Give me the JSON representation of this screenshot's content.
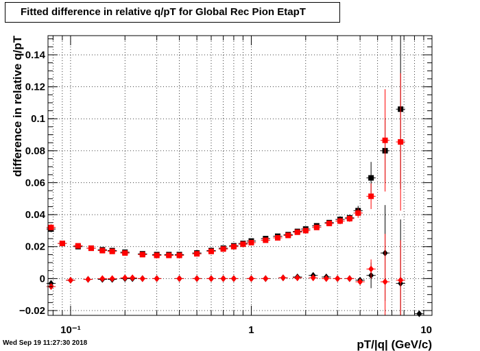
{
  "chart_data": {
    "type": "scatter",
    "title": "Fitted difference in relative q/pT for Global Rec Pion EtapT",
    "xlabel": "pT/|q| (GeV/c)",
    "ylabel": "difference in relative q/pT",
    "x_scale": "log",
    "xlim": [
      0.075,
      10
    ],
    "ylim": [
      -0.023,
      0.152
    ],
    "grid": true,
    "x_ticks": [
      {
        "value": 0.1,
        "label": "10⁻¹"
      },
      {
        "value": 1,
        "label": "1"
      },
      {
        "value": 10,
        "label": "10"
      }
    ],
    "y_ticks": [
      -0.02,
      0,
      0.02,
      0.04,
      0.06,
      0.08,
      0.1,
      0.12,
      0.14
    ],
    "y_tick_labels": [
      "−0.02",
      "0",
      "0.02",
      "0.04",
      "0.06",
      "0.08",
      "0.1",
      "0.12",
      "0.14"
    ],
    "series": [
      {
        "marker": "square",
        "color": "#000000",
        "x": [
          0.078,
          0.09,
          0.11,
          0.13,
          0.15,
          0.17,
          0.2,
          0.25,
          0.3,
          0.35,
          0.4,
          0.5,
          0.6,
          0.7,
          0.8,
          0.9,
          1.0,
          1.2,
          1.4,
          1.6,
          1.8,
          2.0,
          2.3,
          2.7,
          3.1,
          3.5,
          3.9,
          4.6,
          5.5,
          6.7
        ],
        "y": [
          0.031,
          0.022,
          0.02,
          0.019,
          0.018,
          0.0175,
          0.0165,
          0.0155,
          0.015,
          0.015,
          0.015,
          0.016,
          0.0175,
          0.019,
          0.0205,
          0.022,
          0.0235,
          0.025,
          0.0265,
          0.0275,
          0.0295,
          0.031,
          0.033,
          0.035,
          0.037,
          0.038,
          0.0425,
          0.063,
          0.08,
          0.106
        ],
        "yerr": [
          0.002,
          0.001,
          0.001,
          0.001,
          0.001,
          0.001,
          0.0008,
          0.0008,
          0.0008,
          0.0008,
          0.0008,
          0.0008,
          0.0008,
          0.0008,
          0.0008,
          0.0008,
          0.0008,
          0.001,
          0.001,
          0.001,
          0.0012,
          0.0012,
          0.0015,
          0.0015,
          0.002,
          0.002,
          0.003,
          0.01,
          0.02,
          0.05
        ]
      },
      {
        "marker": "square",
        "color": "#ff0000",
        "x": [
          0.078,
          0.09,
          0.11,
          0.13,
          0.15,
          0.17,
          0.2,
          0.25,
          0.3,
          0.35,
          0.4,
          0.5,
          0.6,
          0.7,
          0.8,
          0.9,
          1.0,
          1.2,
          1.4,
          1.6,
          1.8,
          2.0,
          2.3,
          2.7,
          3.1,
          3.5,
          3.9,
          4.6,
          5.5,
          6.7
        ],
        "y": [
          0.032,
          0.022,
          0.0205,
          0.019,
          0.0175,
          0.017,
          0.016,
          0.015,
          0.0145,
          0.0145,
          0.0145,
          0.0155,
          0.017,
          0.0185,
          0.02,
          0.0215,
          0.0225,
          0.024,
          0.0255,
          0.027,
          0.029,
          0.03,
          0.032,
          0.0345,
          0.036,
          0.0375,
          0.041,
          0.0515,
          0.0865,
          0.0855
        ],
        "yerr": [
          0.002,
          0.001,
          0.001,
          0.001,
          0.001,
          0.001,
          0.0008,
          0.0008,
          0.0008,
          0.0008,
          0.0008,
          0.0008,
          0.0008,
          0.0008,
          0.0008,
          0.0008,
          0.0008,
          0.001,
          0.001,
          0.001,
          0.0012,
          0.0012,
          0.0015,
          0.0015,
          0.002,
          0.002,
          0.003,
          0.008,
          0.032,
          0.043
        ]
      },
      {
        "marker": "diamond",
        "color": "#000000",
        "x": [
          0.078,
          0.1,
          0.125,
          0.15,
          0.17,
          0.2,
          0.22,
          0.25,
          0.3,
          0.4,
          0.5,
          0.6,
          0.7,
          0.8,
          1.0,
          1.2,
          1.5,
          1.8,
          2.2,
          2.6,
          3.0,
          3.5,
          4.0,
          4.6,
          5.5,
          6.7,
          8.5
        ],
        "y": [
          -0.003,
          -0.001,
          -0.0005,
          -0.0005,
          -0.0005,
          0.0,
          0.0,
          0.0,
          0.0,
          0.0,
          0.0,
          0.0,
          0.0,
          0.0,
          0.0,
          0.0,
          0.0005,
          0.001,
          0.002,
          0.001,
          0.0,
          0.0,
          -0.001,
          0.002,
          0.016,
          -0.003,
          -0.022
        ],
        "yerr": [
          0.0015,
          0.0008,
          0.0008,
          0.0008,
          0.0008,
          0.0006,
          0.0006,
          0.0006,
          0.0006,
          0.0006,
          0.0006,
          0.0006,
          0.0006,
          0.0006,
          0.0006,
          0.0006,
          0.0006,
          0.0008,
          0.0008,
          0.001,
          0.001,
          0.0012,
          0.0015,
          0.008,
          0.03,
          0.04,
          0.0
        ]
      },
      {
        "marker": "diamond",
        "color": "#ff0000",
        "x": [
          0.078,
          0.1,
          0.125,
          0.15,
          0.17,
          0.2,
          0.22,
          0.25,
          0.3,
          0.4,
          0.5,
          0.6,
          0.7,
          0.8,
          1.0,
          1.2,
          1.5,
          1.8,
          2.2,
          2.6,
          3.0,
          3.5,
          4.0,
          4.6,
          5.5,
          6.7
        ],
        "y": [
          -0.005,
          -0.001,
          -0.0005,
          0.0,
          0.0,
          0.0005,
          0.0005,
          0.0,
          0.0,
          0.0,
          0.0,
          0.0,
          0.0,
          0.0,
          0.0,
          0.0,
          0.0005,
          0.0005,
          0.0005,
          0.0,
          0.0,
          0.0,
          -0.002,
          0.006,
          -0.002,
          -0.001
        ],
        "yerr": [
          0.0015,
          0.0008,
          0.0008,
          0.0008,
          0.0008,
          0.0006,
          0.0006,
          0.0006,
          0.0006,
          0.0006,
          0.0006,
          0.0006,
          0.0006,
          0.0006,
          0.0006,
          0.0006,
          0.0006,
          0.0008,
          0.0008,
          0.001,
          0.001,
          0.0012,
          0.0015,
          0.006,
          0.03,
          0.025
        ]
      }
    ]
  },
  "footer": "Wed Sep 19 11:27:30 2018"
}
